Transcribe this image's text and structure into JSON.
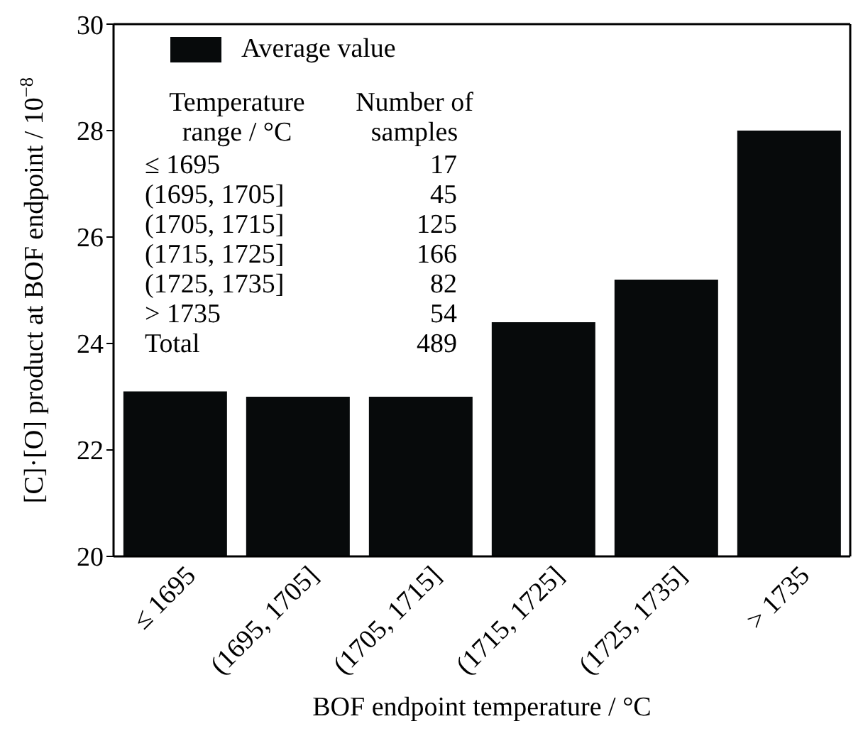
{
  "chart_data": {
    "type": "bar",
    "xlabel": "BOF endpoint temperature / °C",
    "ylabel": "[C]·[O] product at BOF endpoint / 10$^{−8}$",
    "categories": [
      "≤ 1695",
      "(1695, 1705]",
      "(1705, 1715]",
      "(1715, 1725]",
      "(1725, 1735]",
      "> 1735"
    ],
    "series": [
      {
        "name": "Average value",
        "color": "#070a0b",
        "values": [
          23.1,
          23.0,
          23.0,
          24.4,
          25.2,
          28.0
        ]
      }
    ],
    "ylim": [
      20,
      30
    ],
    "yticks": [
      20,
      22,
      24,
      26,
      28,
      30
    ],
    "legend": "top left",
    "grid": false,
    "annotations": [
      "Temperature range / °C",
      "Number of samples",
      "≤ 1695",
      "17",
      "(1695, 1705]",
      "45",
      "(1705, 1715]",
      "125",
      "(1715, 1725]",
      "166",
      "(1725, 1735]",
      "82",
      "> 1735",
      "54",
      "Total",
      "489"
    ]
  }
}
